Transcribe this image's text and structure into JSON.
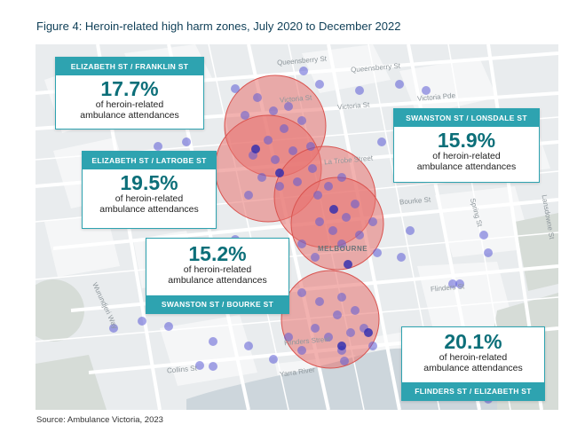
{
  "title": "Figure 4: Heroin-related high harm zones, July 2020 to December 2022",
  "source": "Source: Ambulance Victoria, 2023",
  "colors": {
    "accent": "#2ea3b0",
    "percent_text": "#0c6f79",
    "zone_fill": "#e8726f",
    "point": "#5b5bd6",
    "map_bg": "#e9ecee"
  },
  "map": {
    "city_label": "MELBOURNE",
    "streets": [
      "Queensberry St",
      "Queensberry St",
      "Victoria St",
      "Victoria St",
      "La Trobe Street",
      "Bourke St",
      "Flinders Street",
      "Flinders St",
      "Collins St",
      "Yarra River",
      "Wurundjeri Way",
      "Spring St",
      "Lansdowne St",
      "Victoria Pde"
    ]
  },
  "zones": [
    {
      "tag": "ELIZABETH ST / FRANKLIN ST",
      "percent": "17.7%",
      "desc1": "of heroin-related",
      "desc2": "ambulance attendances"
    },
    {
      "tag": "SWANSTON ST / LONSDALE ST",
      "percent": "15.9%",
      "desc1": "of heroin-related",
      "desc2": "ambulance attendances"
    },
    {
      "tag": "ELIZABETH ST / LATROBE ST",
      "percent": "19.5%",
      "desc1": "of heroin-related",
      "desc2": "ambulance attendances"
    },
    {
      "tag": "SWANSTON ST / BOURKE ST",
      "percent": "15.2%",
      "desc1": "of heroin-related",
      "desc2": "ambulance attendances"
    },
    {
      "tag": "FLINDERS ST / ELIZABETH ST",
      "percent": "20.1%",
      "desc1": "of heroin-related",
      "desc2": "ambulance attendances"
    }
  ]
}
